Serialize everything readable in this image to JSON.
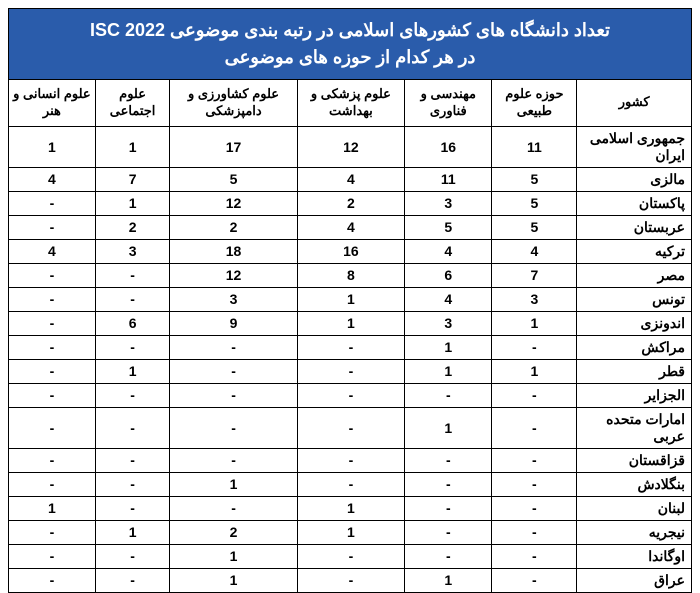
{
  "title_line1": "تعداد دانشگاه های کشورهای اسلامی در رتبه بندی موضوعی ISC 2022",
  "title_line2": "در هر کدام از حوزه های موضوعی",
  "headers": {
    "country": "کشور",
    "natural": "حوزه علوم طبیعی",
    "engineering": "مهندسی و فناوری",
    "medical": "علوم پزشکی و بهداشت",
    "agriculture": "علوم کشاورزی و دامپزشکی",
    "social": "علوم اجتماعی",
    "humanities": "علوم انسانی و هنر"
  },
  "rows": [
    {
      "country": "جمهوری اسلامی ایران",
      "natural": "11",
      "engineering": "16",
      "medical": "12",
      "agriculture": "17",
      "social": "1",
      "humanities": "1"
    },
    {
      "country": "مالزی",
      "natural": "5",
      "engineering": "11",
      "medical": "4",
      "agriculture": "5",
      "social": "7",
      "humanities": "4"
    },
    {
      "country": "پاکستان",
      "natural": "5",
      "engineering": "3",
      "medical": "2",
      "agriculture": "12",
      "social": "1",
      "humanities": "-"
    },
    {
      "country": "عربستان",
      "natural": "5",
      "engineering": "5",
      "medical": "4",
      "agriculture": "2",
      "social": "2",
      "humanities": "-"
    },
    {
      "country": "ترکیه",
      "natural": "4",
      "engineering": "4",
      "medical": "16",
      "agriculture": "18",
      "social": "3",
      "humanities": "4"
    },
    {
      "country": "مصر",
      "natural": "7",
      "engineering": "6",
      "medical": "8",
      "agriculture": "12",
      "social": "-",
      "humanities": "-"
    },
    {
      "country": "تونس",
      "natural": "3",
      "engineering": "4",
      "medical": "1",
      "agriculture": "3",
      "social": "-",
      "humanities": "-"
    },
    {
      "country": "اندونزی",
      "natural": "1",
      "engineering": "3",
      "medical": "1",
      "agriculture": "9",
      "social": "6",
      "humanities": "-"
    },
    {
      "country": "مراکش",
      "natural": "-",
      "engineering": "1",
      "medical": "-",
      "agriculture": "-",
      "social": "-",
      "humanities": "-"
    },
    {
      "country": "قطر",
      "natural": "1",
      "engineering": "1",
      "medical": "-",
      "agriculture": "-",
      "social": "1",
      "humanities": "-"
    },
    {
      "country": "الجزایر",
      "natural": "-",
      "engineering": "-",
      "medical": "-",
      "agriculture": "-",
      "social": "-",
      "humanities": "-"
    },
    {
      "country": "امارات متحده عربی",
      "natural": "-",
      "engineering": "1",
      "medical": "-",
      "agriculture": "-",
      "social": "-",
      "humanities": "-"
    },
    {
      "country": "قزاقستان",
      "natural": "-",
      "engineering": "-",
      "medical": "-",
      "agriculture": "-",
      "social": "-",
      "humanities": "-"
    },
    {
      "country": "بنگلادش",
      "natural": "-",
      "engineering": "-",
      "medical": "-",
      "agriculture": "1",
      "social": "-",
      "humanities": "-"
    },
    {
      "country": "لبنان",
      "natural": "-",
      "engineering": "-",
      "medical": "1",
      "agriculture": "-",
      "social": "-",
      "humanities": "1"
    },
    {
      "country": "نیجریه",
      "natural": "-",
      "engineering": "-",
      "medical": "1",
      "agriculture": "2",
      "social": "1",
      "humanities": "-"
    },
    {
      "country": "اوگاندا",
      "natural": "-",
      "engineering": "-",
      "medical": "-",
      "agriculture": "1",
      "social": "-",
      "humanities": "-"
    },
    {
      "country": "عراق",
      "natural": "-",
      "engineering": "1",
      "medical": "-",
      "agriculture": "1",
      "social": "-",
      "humanities": "-"
    }
  ],
  "colors": {
    "header_bg": "#2a5cab",
    "header_fg": "#ffffff",
    "border": "#000000"
  }
}
